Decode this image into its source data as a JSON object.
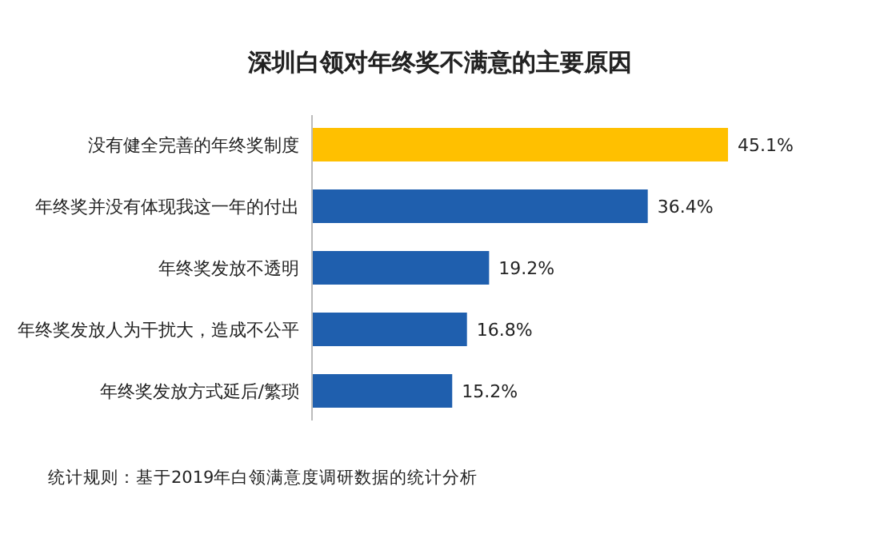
{
  "chart_data": {
    "type": "bar",
    "orientation": "horizontal",
    "title": "深圳白领对年终奖不满意的主要原因",
    "categories": [
      "没有健全完善的年终奖制度",
      "年终奖并没有体现我这一年的付出",
      "年终奖发放不透明",
      "年终奖发放人为干扰大，造成不公平",
      "年终奖发放方式延后/繁琐"
    ],
    "values": [
      45.1,
      36.4,
      19.2,
      16.8,
      15.2
    ],
    "colors": [
      "#ffc000",
      "#1f5fae",
      "#1f5fae",
      "#1f5fae",
      "#1f5fae"
    ],
    "value_labels": [
      "45.1%",
      "36.4%",
      "19.2%",
      "16.8%",
      "15.2%"
    ],
    "annotations": [
      "统计规则：基于2019年白领满意度调研数据的统计分析"
    ]
  }
}
